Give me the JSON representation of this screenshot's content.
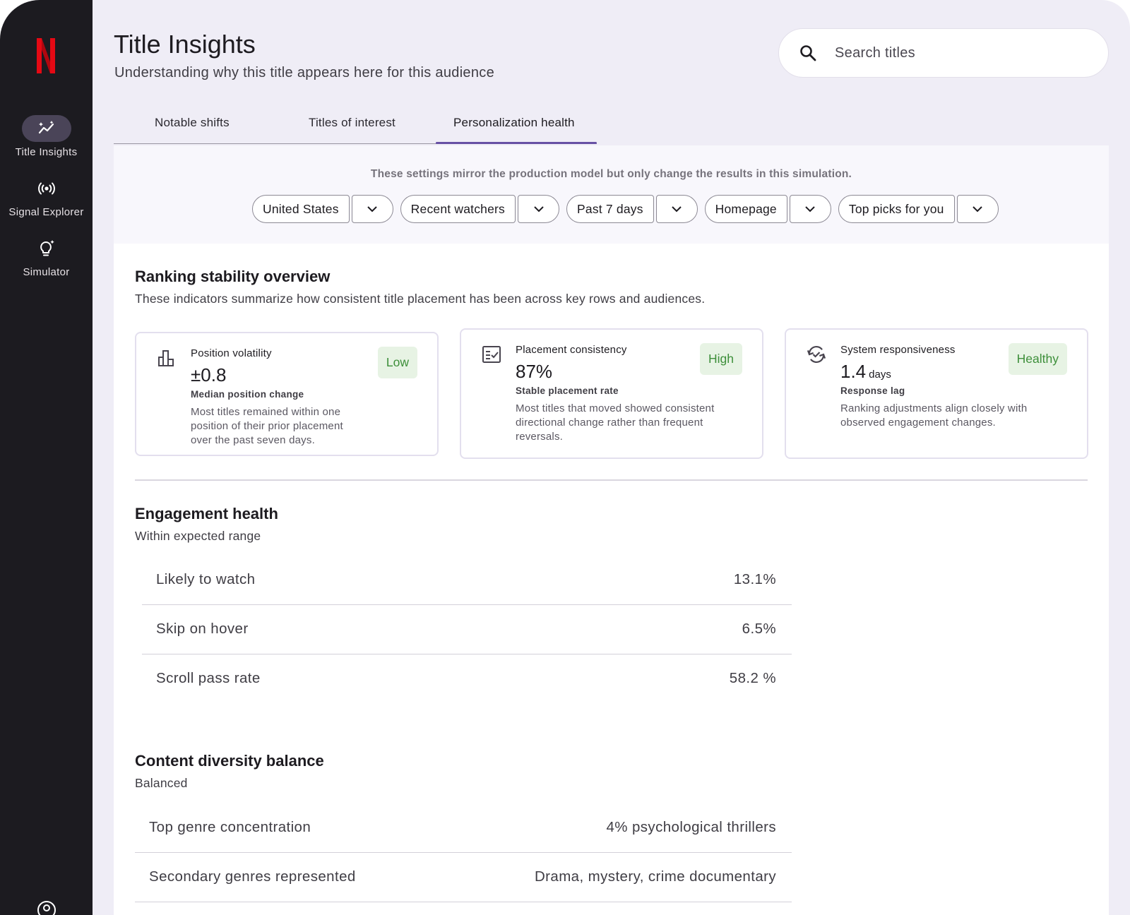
{
  "colors": {
    "sidebar": "#1c1b20",
    "accent": "#6750a4",
    "brand": "#e50914",
    "badge_bg": "#e7f3e4",
    "badge_text": "#3d8f3a",
    "background": "#efedf6"
  },
  "sidebar": {
    "logo": "netflix-logo",
    "items": [
      {
        "label": "Title Insights",
        "icon": "sparkline-icon",
        "active": true
      },
      {
        "label": "Signal Explorer",
        "icon": "broadcast-icon",
        "active": false
      },
      {
        "label": "Simulator",
        "icon": "lightbulb-icon",
        "active": false
      }
    ],
    "account_icon": "account-icon"
  },
  "header": {
    "title": "Title Insights",
    "subtitle": "Understanding why this title appears here for this audience"
  },
  "search": {
    "placeholder": "Search titles",
    "value": ""
  },
  "tabs": [
    {
      "label": "Notable shifts",
      "active": false
    },
    {
      "label": "Titles of interest",
      "active": false
    },
    {
      "label": "Personalization health",
      "active": true
    }
  ],
  "settings": {
    "note": "These settings mirror the production model but only change the results in this simulation.",
    "filters": [
      {
        "value": "United States"
      },
      {
        "value": "Recent watchers"
      },
      {
        "value": "Past 7 days"
      },
      {
        "value": "Homepage"
      },
      {
        "value": "Top picks for you"
      }
    ]
  },
  "ranking": {
    "title": "Ranking stability overview",
    "subtitle": "These indicators summarize how consistent title placement has been across key rows and audiences.",
    "cards": [
      {
        "name": "Position volatility",
        "value": "±0.8",
        "unit": "",
        "caption": "Median position change",
        "badge": "Low",
        "icon": "bar-chart-icon",
        "desc": "Most titles remained within one position of their prior placement over the past seven days."
      },
      {
        "name": "Placement consistency",
        "value": "87%",
        "unit": "",
        "caption": "Stable placement rate",
        "badge": "High",
        "icon": "checklist-icon",
        "desc": "Most titles that moved showed consistent directional change rather than frequent reversals."
      },
      {
        "name": "System responsiveness",
        "value": "1.4",
        "unit": "days",
        "caption": "Response lag",
        "badge": "Healthy",
        "icon": "sync-check-icon",
        "desc": "Ranking adjustments align closely with observed engagement changes."
      }
    ]
  },
  "engagement": {
    "title": "Engagement health",
    "status": "Within expected range",
    "rows": [
      {
        "label": "Likely to watch",
        "value": "13.1%"
      },
      {
        "label": "Skip on hover",
        "value": "6.5%"
      },
      {
        "label": "Scroll pass rate",
        "value": "58.2 %"
      }
    ]
  },
  "diversity": {
    "title": "Content diversity balance",
    "status": "Balanced",
    "rows": [
      {
        "label": "Top genre concentration",
        "value": "4% psychological thrillers"
      },
      {
        "label": "Secondary genres represented",
        "value": "Drama, mystery, crime documentary"
      }
    ]
  }
}
